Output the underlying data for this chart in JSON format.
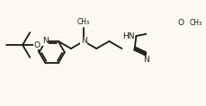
{
  "background_color": "#fdf8f0",
  "bond_color": "#1a1a1a",
  "atom_color": "#1a1a1a",
  "lw": 1.3,
  "fs": 6.5,
  "figsize": [
    2.3,
    1.18
  ],
  "dpi": 100,
  "xlim": [
    -0.5,
    9.5
  ],
  "ylim": [
    -0.3,
    4.2
  ]
}
